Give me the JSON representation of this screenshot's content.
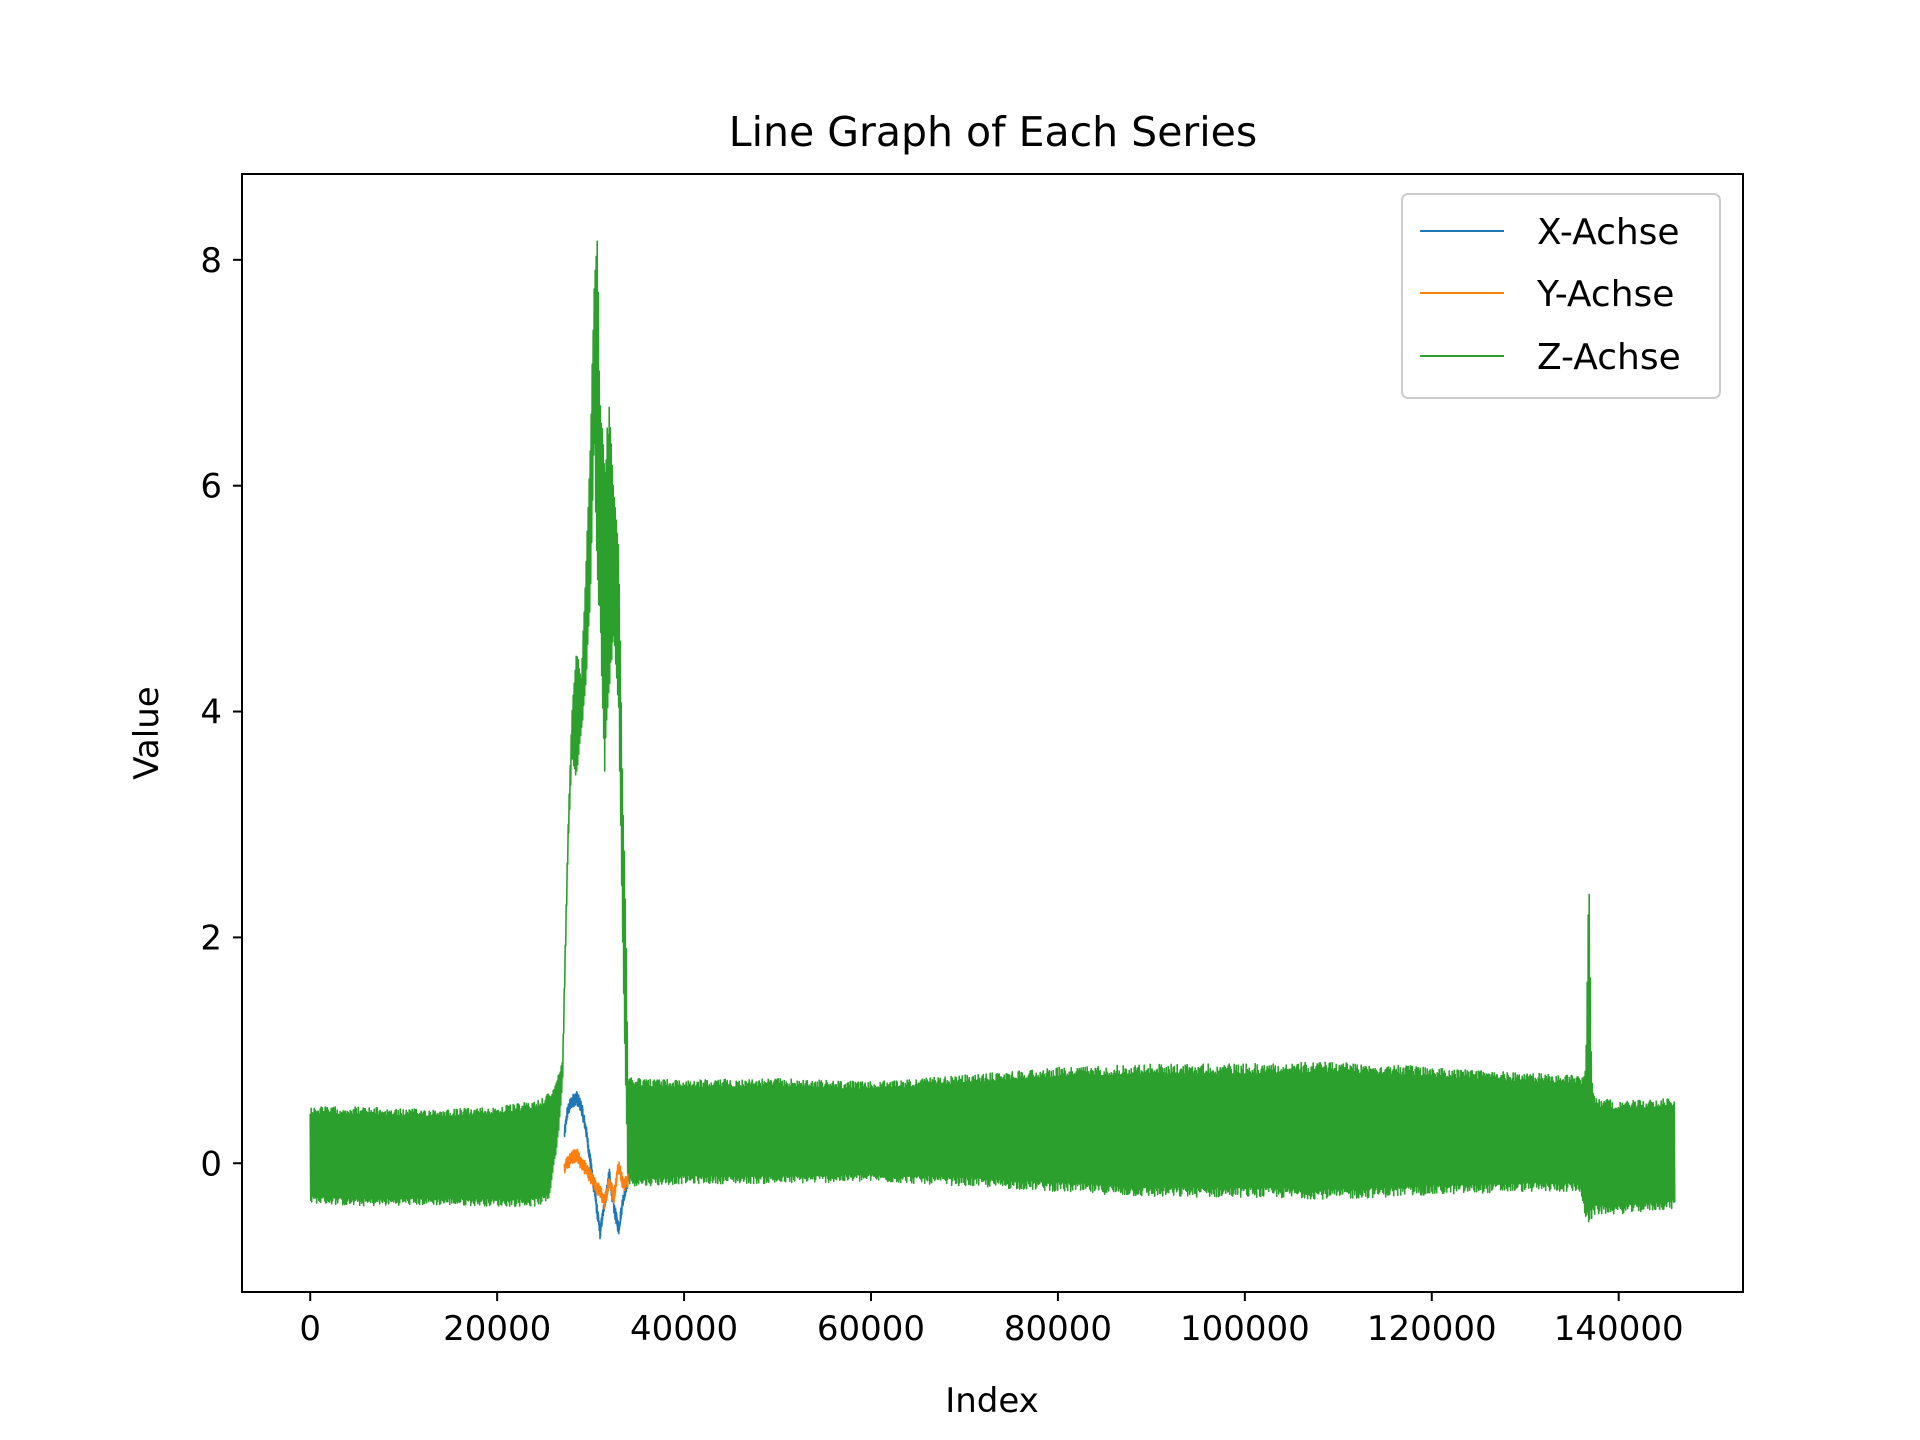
{
  "chart_data": {
    "type": "line",
    "title": "Line Graph of Each Series",
    "xlabel": "Index",
    "ylabel": "Value",
    "xlim": [
      -7300,
      153300
    ],
    "ylim": [
      -1.14,
      8.76
    ],
    "x_ticks": [
      0,
      20000,
      40000,
      60000,
      80000,
      100000,
      120000,
      140000
    ],
    "y_ticks": [
      0,
      2,
      4,
      6,
      8
    ],
    "grid": false,
    "legend_position": "top-right",
    "series": [
      {
        "name": "X-Achse",
        "color": "#1f77b4",
        "x_range": [
          27200,
          34000
        ],
        "points": [
          [
            27200,
            0.25
          ],
          [
            27500,
            0.45
          ],
          [
            28000,
            0.55
          ],
          [
            28500,
            0.58
          ],
          [
            29000,
            0.5
          ],
          [
            29500,
            0.3
          ],
          [
            30000,
            0.0
          ],
          [
            30500,
            -0.3
          ],
          [
            31000,
            -0.62
          ],
          [
            31500,
            -0.35
          ],
          [
            32000,
            -0.1
          ],
          [
            32500,
            -0.4
          ],
          [
            33000,
            -0.58
          ],
          [
            33500,
            -0.3
          ],
          [
            34000,
            -0.15
          ]
        ]
      },
      {
        "name": "Y-Achse",
        "color": "#ff7f0e",
        "x_range": [
          27200,
          34000
        ],
        "points": [
          [
            27200,
            -0.05
          ],
          [
            27500,
            0.0
          ],
          [
            28000,
            0.05
          ],
          [
            28500,
            0.08
          ],
          [
            29000,
            0.0
          ],
          [
            29500,
            -0.05
          ],
          [
            30000,
            -0.12
          ],
          [
            30500,
            -0.2
          ],
          [
            31000,
            -0.25
          ],
          [
            31500,
            -0.35
          ],
          [
            32000,
            -0.15
          ],
          [
            32500,
            -0.3
          ],
          [
            33000,
            0.0
          ],
          [
            33500,
            -0.2
          ],
          [
            34000,
            -0.15
          ]
        ]
      },
      {
        "name": "Z-Achse",
        "color": "#2ca02c",
        "x_range": [
          0,
          146000
        ],
        "upper_envelope": [
          [
            0,
            0.5
          ],
          [
            5000,
            0.5
          ],
          [
            10000,
            0.48
          ],
          [
            15000,
            0.48
          ],
          [
            20000,
            0.5
          ],
          [
            24000,
            0.55
          ],
          [
            26000,
            0.65
          ],
          [
            27000,
            0.9
          ],
          [
            27300,
            2.0
          ],
          [
            27600,
            3.0
          ],
          [
            28000,
            4.0
          ],
          [
            28500,
            4.6
          ],
          [
            29000,
            4.3
          ],
          [
            29500,
            5.3
          ],
          [
            30000,
            6.5
          ],
          [
            30400,
            7.9
          ],
          [
            30700,
            8.3
          ],
          [
            31000,
            6.8
          ],
          [
            31500,
            6.2
          ],
          [
            32000,
            6.8
          ],
          [
            32500,
            6.0
          ],
          [
            33000,
            5.5
          ],
          [
            33400,
            3.5
          ],
          [
            33800,
            2.0
          ],
          [
            34000,
            0.78
          ],
          [
            36000,
            0.75
          ],
          [
            40000,
            0.74
          ],
          [
            50000,
            0.75
          ],
          [
            60000,
            0.72
          ],
          [
            70000,
            0.78
          ],
          [
            80000,
            0.85
          ],
          [
            90000,
            0.88
          ],
          [
            100000,
            0.88
          ],
          [
            110000,
            0.9
          ],
          [
            120000,
            0.85
          ],
          [
            130000,
            0.8
          ],
          [
            136000,
            0.78
          ],
          [
            136500,
            0.9
          ],
          [
            136800,
            2.8
          ],
          [
            137100,
            0.8
          ],
          [
            137500,
            0.58
          ],
          [
            140000,
            0.55
          ],
          [
            146000,
            0.58
          ]
        ],
        "lower_envelope": [
          [
            0,
            -0.35
          ],
          [
            5000,
            -0.38
          ],
          [
            10000,
            -0.37
          ],
          [
            15000,
            -0.37
          ],
          [
            20000,
            -0.38
          ],
          [
            24000,
            -0.38
          ],
          [
            25500,
            -0.35
          ],
          [
            26500,
            0.2
          ],
          [
            27000,
            0.7
          ],
          [
            27300,
            1.8
          ],
          [
            27600,
            2.8
          ],
          [
            28000,
            3.6
          ],
          [
            28500,
            3.4
          ],
          [
            29000,
            3.8
          ],
          [
            29500,
            4.2
          ],
          [
            30000,
            5.0
          ],
          [
            30400,
            6.5
          ],
          [
            30700,
            5.0
          ],
          [
            31000,
            4.8
          ],
          [
            31500,
            3.4
          ],
          [
            32000,
            4.2
          ],
          [
            32500,
            4.6
          ],
          [
            33000,
            4.0
          ],
          [
            33400,
            2.0
          ],
          [
            33800,
            0.5
          ],
          [
            34000,
            -0.2
          ],
          [
            36000,
            -0.2
          ],
          [
            40000,
            -0.18
          ],
          [
            50000,
            -0.18
          ],
          [
            60000,
            -0.16
          ],
          [
            70000,
            -0.2
          ],
          [
            80000,
            -0.25
          ],
          [
            90000,
            -0.3
          ],
          [
            100000,
            -0.3
          ],
          [
            110000,
            -0.32
          ],
          [
            120000,
            -0.28
          ],
          [
            130000,
            -0.25
          ],
          [
            135800,
            -0.25
          ],
          [
            136300,
            -0.45
          ],
          [
            136800,
            -0.55
          ],
          [
            137500,
            -0.45
          ],
          [
            140000,
            -0.45
          ],
          [
            146000,
            -0.4
          ]
        ]
      }
    ]
  }
}
